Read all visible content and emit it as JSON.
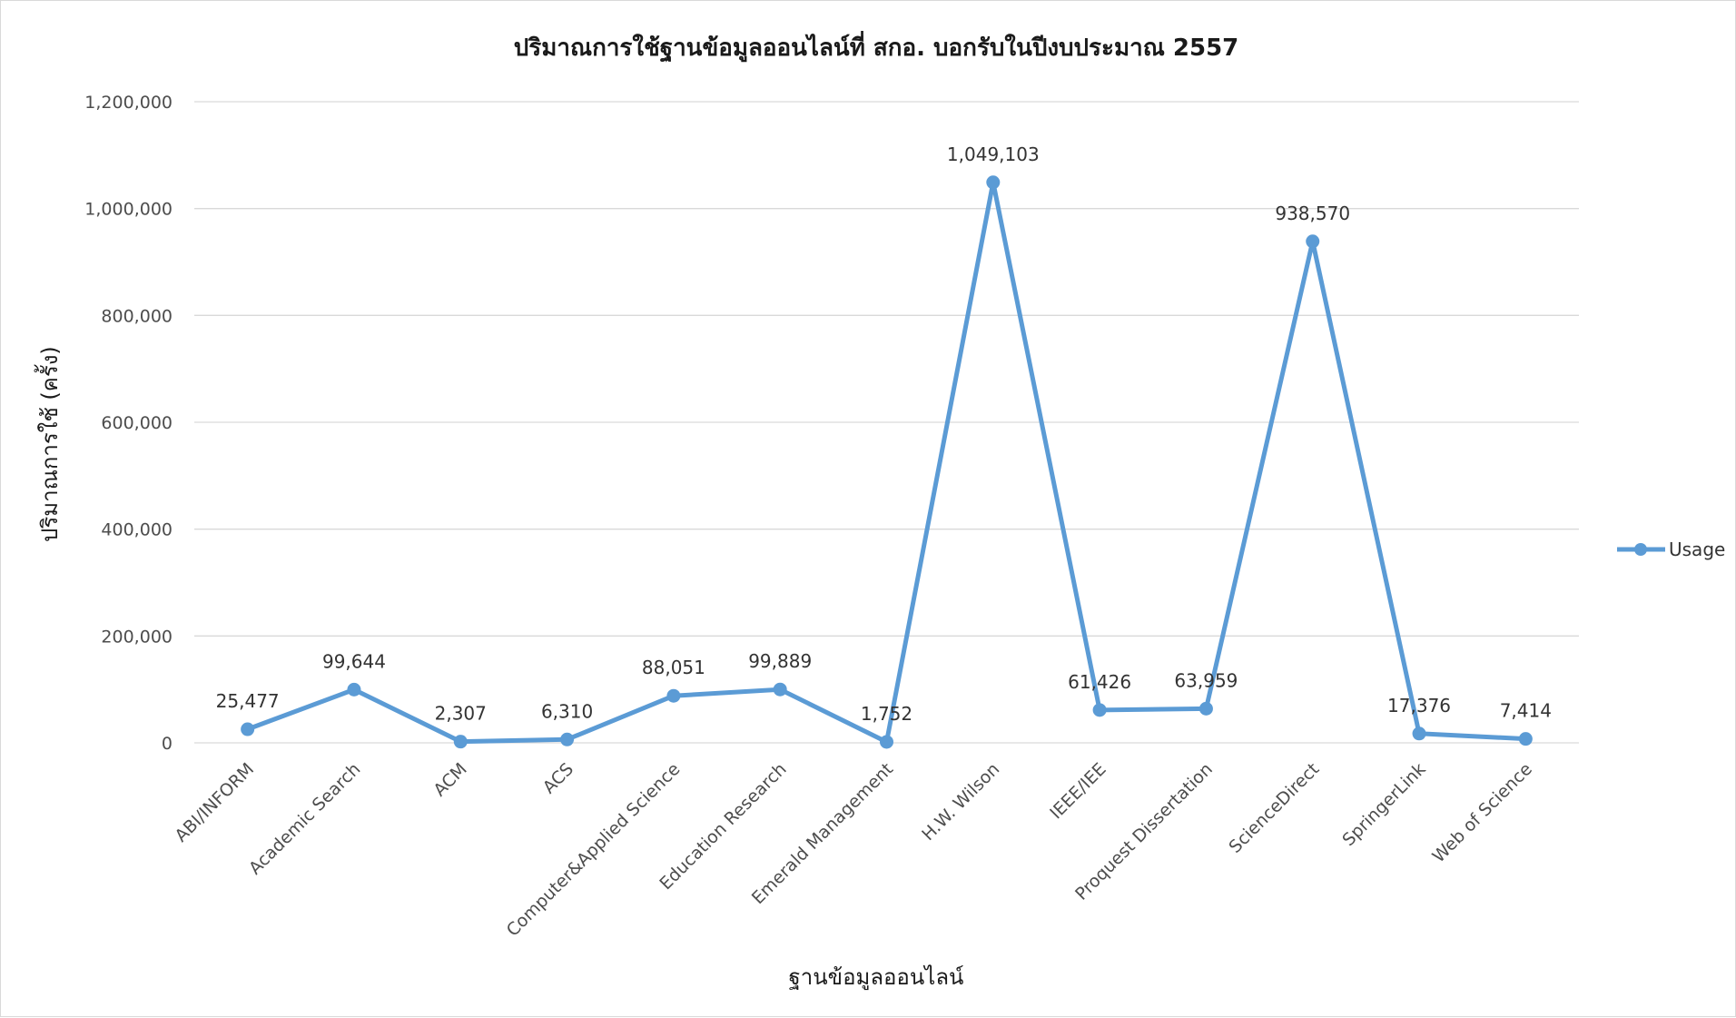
{
  "chart_data": {
    "type": "line",
    "title": "ปริมาณการใช้ฐานข้อมูลออนไลน์ที่ สกอ. บอกรับในปีงบประมาณ 2557",
    "xlabel": "ฐานข้อมูลออนไลน์",
    "ylabel": "ปริมาณการใช้ (ครั้ง)",
    "categories": [
      "ABI/INFORM",
      "Academic Search",
      "ACM",
      "ACS",
      "Computer&Applied Science",
      "Education Research",
      "Emerald Management",
      "H.W. Wilson",
      "IEEE/IEE",
      "Proquest Dissertation",
      "ScienceDirect",
      "SpringerLink",
      "Web of Science"
    ],
    "series": [
      {
        "name": "Usage",
        "color": "#5b9bd5",
        "values": [
          25477,
          99644,
          2307,
          6310,
          88051,
          99889,
          1752,
          1049103,
          61426,
          63959,
          938570,
          17376,
          7414
        ],
        "labels": [
          "25,477",
          "99,644",
          "2,307",
          "6,310",
          "88,051",
          "99,889",
          "1,752",
          "1,049,103",
          "61,426",
          "63,959",
          "938,570",
          "17,376",
          "7,414"
        ]
      }
    ],
    "ylim": [
      0,
      1200000
    ],
    "yticks": [
      0,
      200000,
      400000,
      600000,
      800000,
      1000000,
      1200000
    ],
    "ytick_labels": [
      "0",
      "200,000",
      "400,000",
      "600,000",
      "800,000",
      "1,000,000",
      "1,200,000"
    ],
    "grid": true,
    "legend_position": "right"
  }
}
